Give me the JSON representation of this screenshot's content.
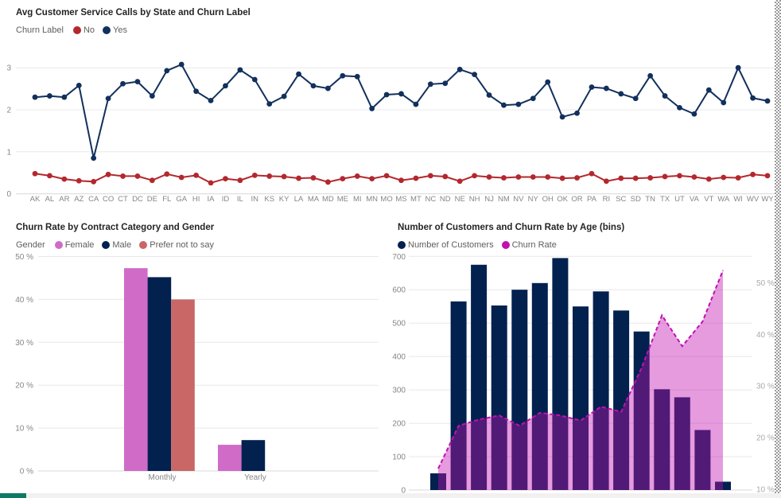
{
  "colors": {
    "title_text": "#252423",
    "legend_text": "#605e5c",
    "axis_text": "#868686",
    "grid": "#e8e8e8",
    "zero_line": "#d9d9d9",
    "footer_bar": "#f2f1ef",
    "footer_accent": "#0d7a63",
    "dotted_border": "#9b9b9b"
  },
  "chart_data": [
    {
      "id": "calls-by-state",
      "type": "line",
      "title": "Avg Customer Service Calls by State and Churn Label",
      "legend_title": "Churn Label",
      "legend_position": "top-left",
      "grid": true,
      "ylim": [
        0,
        3.2
      ],
      "yticks": [
        0,
        1,
        2,
        3
      ],
      "categories": [
        "AK",
        "AL",
        "AR",
        "AZ",
        "CA",
        "CO",
        "CT",
        "DC",
        "DE",
        "FL",
        "GA",
        "HI",
        "IA",
        "ID",
        "IL",
        "IN",
        "KS",
        "KY",
        "LA",
        "MA",
        "MD",
        "ME",
        "MI",
        "MN",
        "MO",
        "MS",
        "MT",
        "NC",
        "ND",
        "NE",
        "NH",
        "NJ",
        "NM",
        "NV",
        "NY",
        "OH",
        "OK",
        "OR",
        "PA",
        "RI",
        "SC",
        "SD",
        "TN",
        "TX",
        "UT",
        "VA",
        "VT",
        "WA",
        "WI",
        "WV",
        "WY"
      ],
      "series": [
        {
          "name": "No",
          "color": "#b3282d",
          "values": [
            0.48,
            0.43,
            0.35,
            0.31,
            0.29,
            0.46,
            0.42,
            0.42,
            0.32,
            0.47,
            0.39,
            0.44,
            0.26,
            0.36,
            0.32,
            0.44,
            0.42,
            0.41,
            0.37,
            0.38,
            0.28,
            0.36,
            0.42,
            0.36,
            0.43,
            0.32,
            0.37,
            0.43,
            0.41,
            0.3,
            0.43,
            0.4,
            0.38,
            0.4,
            0.4,
            0.4,
            0.37,
            0.38,
            0.48,
            0.3,
            0.37,
            0.37,
            0.38,
            0.41,
            0.43,
            0.4,
            0.35,
            0.39,
            0.38,
            0.46,
            0.43
          ]
        },
        {
          "name": "Yes",
          "color": "#12305c",
          "values": [
            2.3,
            2.33,
            2.3,
            2.58,
            0.85,
            2.27,
            2.62,
            2.67,
            2.33,
            2.93,
            3.08,
            2.44,
            2.22,
            2.57,
            2.95,
            2.72,
            2.14,
            2.32,
            2.85,
            2.57,
            2.51,
            2.81,
            2.79,
            2.03,
            2.36,
            2.38,
            2.13,
            2.61,
            2.63,
            2.96,
            2.84,
            2.35,
            2.11,
            2.13,
            2.27,
            2.66,
            1.83,
            1.92,
            2.54,
            2.51,
            2.38,
            2.27,
            2.81,
            2.33,
            2.05,
            1.9,
            2.47,
            2.17,
            3.0,
            2.28,
            2.21
          ]
        }
      ]
    },
    {
      "id": "churn-by-contract",
      "type": "bar",
      "title": "Churn Rate by Contract Category and Gender",
      "legend_title": "Gender",
      "legend_position": "top-left",
      "grid": true,
      "ylim": [
        0,
        50
      ],
      "yticks": [
        0,
        10,
        20,
        30,
        40,
        50
      ],
      "y_format": "percent",
      "categories": [
        "Monthly",
        "Yearly"
      ],
      "series": [
        {
          "name": "Female",
          "color": "#d06bc8",
          "values": [
            47.3,
            6.1
          ]
        },
        {
          "name": "Male",
          "color": "#03214f",
          "values": [
            45.2,
            7.2
          ]
        },
        {
          "name": "Prefer not to say",
          "color": "#c96666",
          "values": [
            40.0,
            null
          ]
        }
      ]
    },
    {
      "id": "customers-churn-by-age",
      "type": "combo",
      "title": "Number of Customers and Churn Rate by Age (bins)",
      "legend_position": "top-left",
      "grid": true,
      "left_ylim": [
        0,
        700
      ],
      "left_yticks": [
        0,
        100,
        200,
        300,
        400,
        500,
        600,
        700
      ],
      "right_ylim": [
        10,
        53
      ],
      "right_yticks": [
        10,
        20,
        30,
        40,
        50
      ],
      "right_format": "percent",
      "bins": 15,
      "series": [
        {
          "name": "Number of Customers",
          "plot": "column",
          "axis": "left",
          "color": "#03214f",
          "values": [
            50,
            565,
            675,
            553,
            600,
            620,
            695,
            550,
            595,
            538,
            475,
            302,
            278,
            180,
            25
          ]
        },
        {
          "name": "Churn Rate",
          "plot": "area-line",
          "axis": "right",
          "color": "#c111b1",
          "dashed": true,
          "area_opacity": 0.42,
          "values": [
            14,
            22.3,
            23.5,
            24.3,
            22.3,
            24.8,
            24.3,
            23.3,
            26,
            25,
            33.5,
            43.7,
            37.7,
            42.5,
            52.4
          ]
        }
      ]
    }
  ]
}
